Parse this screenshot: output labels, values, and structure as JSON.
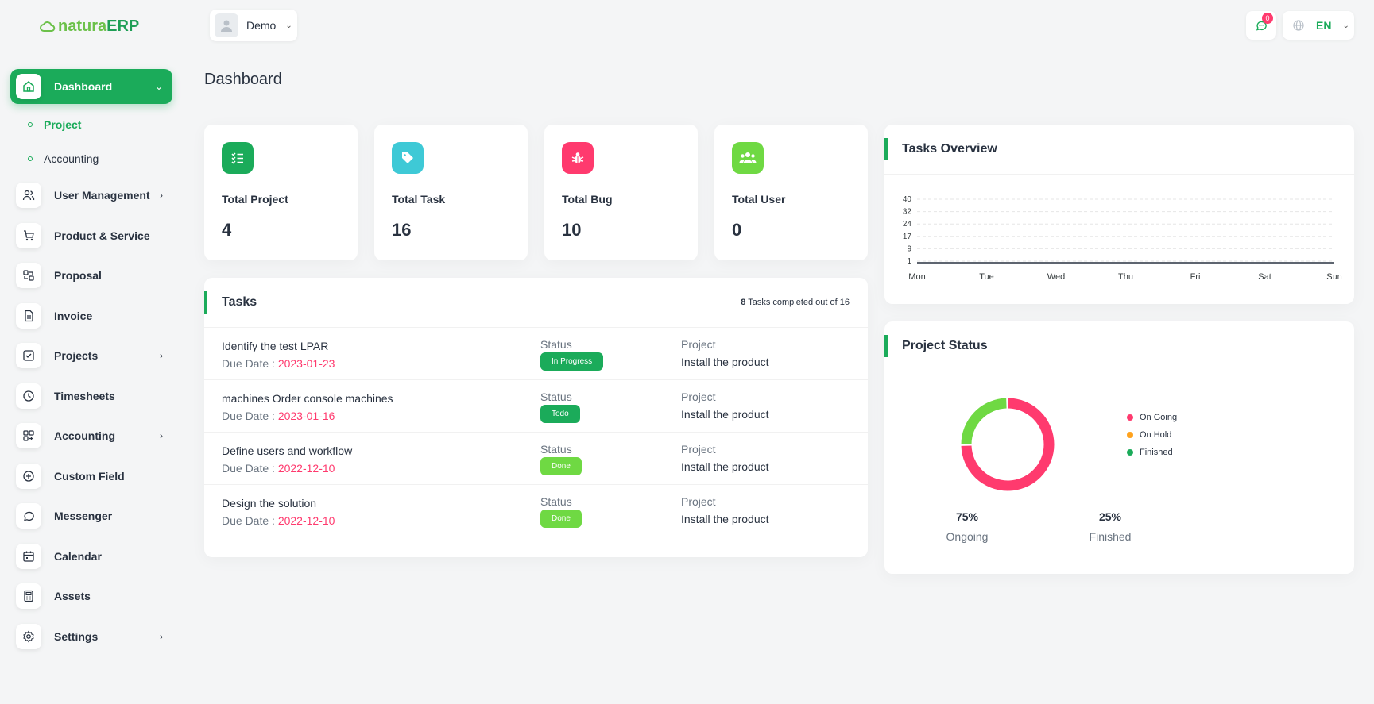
{
  "brand": {
    "part1": "natura",
    "part2": "ERP"
  },
  "header": {
    "user_name": "Demo",
    "notification_count": "0",
    "language": "EN"
  },
  "page_title": "Dashboard",
  "sidebar": {
    "items": [
      {
        "label": "Dashboard",
        "icon": "home-icon"
      },
      {
        "label": "User Management",
        "icon": "users-icon"
      },
      {
        "label": "Product & Service",
        "icon": "cart-icon"
      },
      {
        "label": "Proposal",
        "icon": "proposal-icon"
      },
      {
        "label": "Invoice",
        "icon": "file-icon"
      },
      {
        "label": "Projects",
        "icon": "square-check-icon"
      },
      {
        "label": "Timesheets",
        "icon": "clock-icon"
      },
      {
        "label": "Accounting",
        "icon": "layout-grid-icon"
      },
      {
        "label": "Custom Field",
        "icon": "plus-circle-icon"
      },
      {
        "label": "Messenger",
        "icon": "message-icon"
      },
      {
        "label": "Calendar",
        "icon": "calendar-icon"
      },
      {
        "label": "Assets",
        "icon": "calculator-icon"
      },
      {
        "label": "Settings",
        "icon": "settings-icon"
      }
    ],
    "dashboard_sub": [
      {
        "label": "Project"
      },
      {
        "label": "Accounting"
      }
    ]
  },
  "stats": [
    {
      "title": "Total Project",
      "value": "4",
      "color": "#1bab5a",
      "icon": "list-check-icon"
    },
    {
      "title": "Total Task",
      "value": "16",
      "color": "#3ec9d6",
      "icon": "tag-icon"
    },
    {
      "title": "Total Bug",
      "value": "10",
      "color": "#ff3a6e",
      "icon": "bug-icon"
    },
    {
      "title": "Total User",
      "value": "0",
      "color": "#6fd943",
      "icon": "users-icon"
    }
  ],
  "tasks": {
    "title": "Tasks",
    "summary_count": "8",
    "summary_text": "Tasks completed out of 16",
    "status_label": "Status",
    "project_label": "Project",
    "due_label": "Due Date : ",
    "rows": [
      {
        "name": "Identify the test LPAR",
        "due": "2023-01-23",
        "status": "In Progress",
        "project": "Install the product"
      },
      {
        "name": "machines Order console machines",
        "due": "2023-01-16",
        "status": "Todo",
        "project": "Install the product"
      },
      {
        "name": "Define users and workflow",
        "due": "2022-12-10",
        "status": "Done",
        "project": "Install the product"
      },
      {
        "name": "Design the solution",
        "due": "2022-12-10",
        "status": "Done",
        "project": "Install the product"
      }
    ]
  },
  "overview": {
    "title": "Tasks Overview"
  },
  "project_status": {
    "title": "Project Status",
    "legend": [
      {
        "label": "On Going",
        "color": "#ff3a6e"
      },
      {
        "label": "On Hold",
        "color": "#ffa21d"
      },
      {
        "label": "Finished",
        "color": "#1bab5a"
      }
    ],
    "ongoing_pct": "75%",
    "ongoing_label": "Ongoing",
    "finished_pct": "25%",
    "finished_label": "Finished"
  },
  "chart_data": [
    {
      "type": "line",
      "title": "Tasks Overview",
      "categories": [
        "Mon",
        "Tue",
        "Wed",
        "Thu",
        "Fri",
        "Sat",
        "Sun"
      ],
      "y_ticks": [
        "40",
        "32",
        "24",
        "17",
        "9",
        "1"
      ],
      "series": [
        {
          "values": [
            0,
            0,
            0,
            0,
            0,
            0,
            0
          ],
          "color": "#293240"
        }
      ],
      "grid": true
    },
    {
      "type": "pie",
      "title": "Project Status",
      "labels": [
        "On Going",
        "On Hold",
        "Finished"
      ],
      "values": [
        75,
        0,
        25
      ],
      "colors": [
        "#ff3a6e",
        "#ffa21d",
        "#6fd943"
      ]
    }
  ]
}
